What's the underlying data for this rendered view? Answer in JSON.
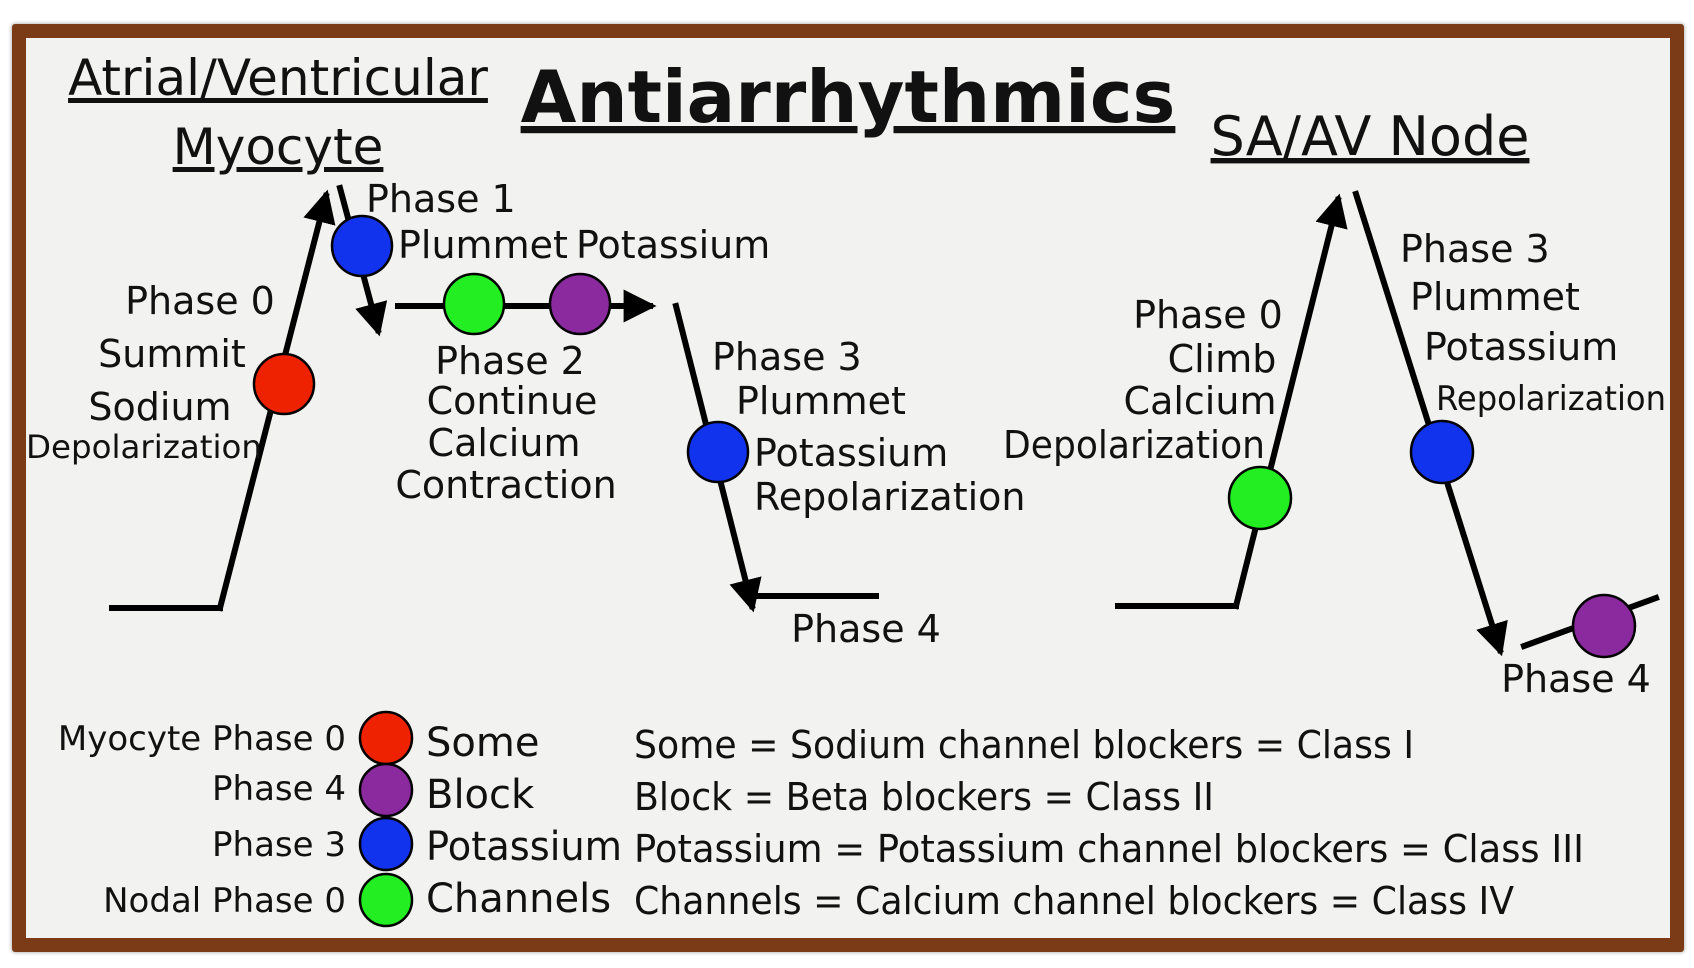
{
  "title": "Antiarrhythmics",
  "myocyte": {
    "heading_line1": "Atrial/Ventricular",
    "heading_line2": "Myocyte",
    "phase0": {
      "label": "Phase 0",
      "w1": "Summit",
      "w2": "Sodium",
      "w3": "Depolarization"
    },
    "phase1": {
      "label": "Phase 1",
      "w1": "Plummet",
      "w2": "Potassium"
    },
    "phase2": {
      "label": "Phase 2",
      "w1": "Continue",
      "w2": "Calcium",
      "w3": "Contraction"
    },
    "phase3": {
      "label": "Phase 3",
      "w1": "Plummet",
      "w2": "Potassium",
      "w3": "Repolarization"
    },
    "phase4": {
      "label": "Phase 4"
    }
  },
  "node": {
    "heading": "SA/AV Node",
    "phase0": {
      "label": "Phase 0",
      "w1": "Climb",
      "w2": "Calcium",
      "w3": "Depolarization"
    },
    "phase3": {
      "label": "Phase 3",
      "w1": "Plummet",
      "w2": "Potassium",
      "w3": "Repolarization"
    },
    "phase4": {
      "label": "Phase 4"
    }
  },
  "legend": [
    {
      "phase": "Myocyte Phase 0",
      "color": "#ee2200",
      "word": "Some",
      "meaning": "Some = Sodium channel blockers = Class I"
    },
    {
      "phase": "Phase 4",
      "color": "#8a2a9e",
      "word": "Block",
      "meaning": "Block = Beta blockers = Class II"
    },
    {
      "phase": "Phase 3",
      "color": "#1133ee",
      "word": "Potassium",
      "meaning": "Potassium = Potassium channel blockers = Class III"
    },
    {
      "phase": "Nodal Phase 0",
      "color": "#22ee22",
      "word": "Channels",
      "meaning": "Channels = Calcium channel blockers = Class IV"
    }
  ],
  "colors": {
    "sodium": "#ee2200",
    "beta": "#8a2a9e",
    "potassium": "#1133ee",
    "calcium": "#22ee22",
    "frame": "#7b3b17",
    "board": "#f2f2f0"
  }
}
